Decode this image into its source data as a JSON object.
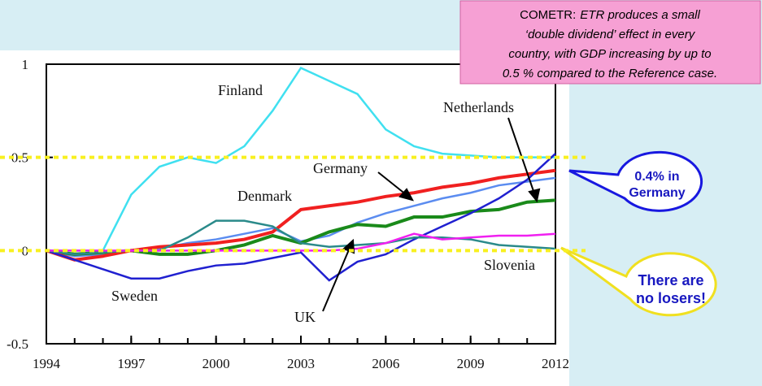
{
  "chart_data": {
    "type": "line",
    "x": [
      1994,
      1995,
      1996,
      1997,
      1998,
      1999,
      2000,
      2001,
      2002,
      2003,
      2004,
      2005,
      2006,
      2007,
      2008,
      2009,
      2010,
      2011,
      2012
    ],
    "series": [
      {
        "name": "Finland",
        "color": "#40e0f0",
        "values": [
          0,
          0,
          0,
          0.3,
          0.45,
          0.5,
          0.47,
          0.56,
          0.75,
          0.98,
          0.91,
          0.84,
          0.65,
          0.56,
          0.52,
          0.51,
          0.5,
          0.5,
          0.5
        ]
      },
      {
        "name": "Germany",
        "color": "#5b8cf0",
        "values": [
          0,
          -0.03,
          -0.02,
          0,
          0.01,
          0.04,
          0.06,
          0.09,
          0.12,
          0.05,
          0.08,
          0.15,
          0.2,
          0.24,
          0.28,
          0.31,
          0.35,
          0.37,
          0.39
        ]
      },
      {
        "name": "Netherlands",
        "color": "#1a8a1a",
        "values": [
          0,
          -0.02,
          -0.01,
          0,
          -0.02,
          -0.02,
          0,
          0.03,
          0.08,
          0.04,
          0.1,
          0.14,
          0.13,
          0.18,
          0.18,
          0.21,
          0.22,
          0.26,
          0.27
        ]
      },
      {
        "name": "Denmark",
        "color": "#f02020",
        "values": [
          0,
          -0.05,
          -0.03,
          0,
          0.02,
          0.03,
          0.04,
          0.06,
          0.1,
          0.22,
          0.24,
          0.26,
          0.29,
          0.31,
          0.34,
          0.36,
          0.39,
          0.41,
          0.43
        ]
      },
      {
        "name": "Sweden",
        "color": "#2020d0",
        "values": [
          0,
          -0.05,
          -0.1,
          -0.15,
          -0.15,
          -0.11,
          -0.08,
          -0.07,
          -0.04,
          -0.01,
          -0.16,
          -0.06,
          -0.02,
          0.06,
          0.13,
          0.2,
          0.28,
          0.38,
          0.52
        ]
      },
      {
        "name": "UK",
        "color": "#2a8a8a",
        "values": [
          0,
          -0.02,
          -0.01,
          0,
          0,
          0.07,
          0.16,
          0.16,
          0.13,
          0.04,
          0.02,
          0.03,
          0.04,
          0.07,
          0.07,
          0.06,
          0.03,
          0.02,
          0.01
        ]
      },
      {
        "name": "Slovenia",
        "color": "#f020f0",
        "values": [
          0,
          0,
          0,
          0,
          0,
          0,
          0,
          0,
          0,
          0,
          0,
          0.01,
          0.04,
          0.09,
          0.06,
          0.07,
          0.08,
          0.08,
          0.09
        ]
      }
    ],
    "xlim": [
      1994,
      2012
    ],
    "xticks": [
      1994,
      1997,
      2000,
      2003,
      2006,
      2009,
      2012
    ],
    "ylim": [
      -0.5,
      1
    ],
    "yticks": [
      1,
      0.5,
      0,
      -0.5
    ],
    "reference_lines": [
      0.5,
      0
    ],
    "annotations": {
      "note": {
        "label": "COMETR:",
        "lines": [
          "ETR produces a small",
          "‘double dividend’ effect in every",
          "country, with GDP increasing by up to",
          "0.5 % compared to the Reference case."
        ]
      },
      "germany_callout": [
        "0.4% in",
        "Germany"
      ],
      "losers_callout": [
        "There are",
        "no losers!"
      ]
    }
  }
}
